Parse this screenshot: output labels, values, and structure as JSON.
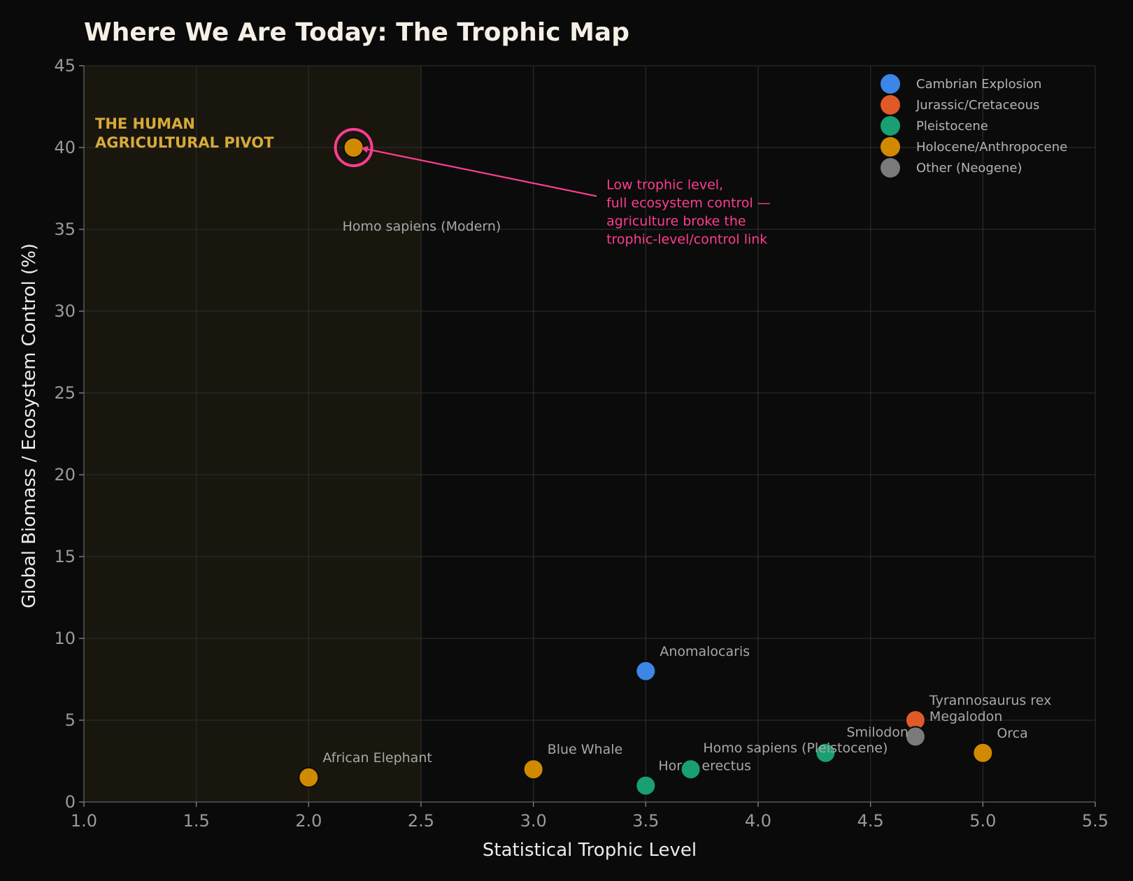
{
  "chart_data": {
    "type": "scatter",
    "title": "Where We Are Today: The Trophic Map",
    "xlabel": "Statistical Trophic Level",
    "ylabel": "Global Biomass / Ecosystem Control (%)",
    "xlim": [
      1.0,
      5.5
    ],
    "ylim": [
      0,
      45
    ],
    "xticks": [
      "1.0",
      "1.5",
      "2.0",
      "2.5",
      "3.0",
      "3.5",
      "4.0",
      "4.5",
      "5.0",
      "5.5"
    ],
    "yticks": [
      "0",
      "5",
      "10",
      "15",
      "20",
      "25",
      "30",
      "35",
      "40",
      "45"
    ],
    "grid": true,
    "legend_position": "top-right",
    "series": [
      {
        "name": "Cambrian Explosion",
        "color": "#3b86e6",
        "points": [
          {
            "label": "Anomalocaris",
            "x": 3.5,
            "y": 8
          }
        ]
      },
      {
        "name": "Jurassic/Cretaceous",
        "color": "#e05a28",
        "points": [
          {
            "label": "Tyrannosaurus rex",
            "x": 4.7,
            "y": 5
          }
        ]
      },
      {
        "name": "Pleistocene",
        "color": "#1a9e74",
        "points": [
          {
            "label": "Homo erectus",
            "x": 3.5,
            "y": 1
          },
          {
            "label": "",
            "x": 3.7,
            "y": 2
          },
          {
            "label": "Homo sapiens (Pleistocene)",
            "x": 4.3,
            "y": 3
          }
        ]
      },
      {
        "name": "Holocene/Anthropocene",
        "color": "#d18a00",
        "points": [
          {
            "label": "Homo sapiens (Modern)",
            "x": 2.2,
            "y": 40
          },
          {
            "label": "African Elephant",
            "x": 2.0,
            "y": 1.5
          },
          {
            "label": "Blue Whale",
            "x": 3.0,
            "y": 2
          },
          {
            "label": "Orca",
            "x": 5.0,
            "y": 3
          }
        ]
      },
      {
        "name": "Other (Neogene)",
        "color": "#7a7a7a",
        "points": [
          {
            "label": "Smilodon",
            "x": 4.7,
            "y": 4
          }
        ]
      }
    ],
    "extra_labels": [
      {
        "text": "Megalodon",
        "x": 4.7,
        "y": 5
      }
    ],
    "highlight_region": {
      "x_range": [
        1.0,
        2.5
      ],
      "color": "#d6aa3a",
      "label_lines": [
        "THE HUMAN",
        "AGRICULTURAL PIVOT"
      ]
    },
    "highlight_point": {
      "x": 2.2,
      "y": 40,
      "color": "#ff3d8f"
    },
    "annotation": {
      "lines": [
        "Low trophic level,",
        "full ecosystem control —",
        "agriculture broke the",
        "trophic-level/control link"
      ],
      "color": "#ff3d8f",
      "text_x": 3.3,
      "text_y": 37.2,
      "target_x": 2.22,
      "target_y": 40
    }
  }
}
